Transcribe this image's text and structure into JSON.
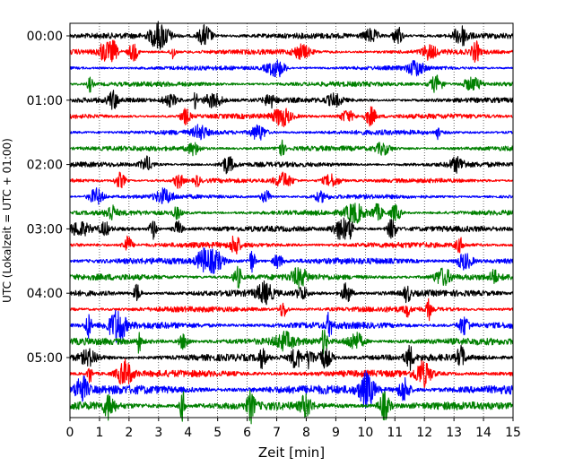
{
  "chart_data": {
    "type": "line",
    "title": "",
    "xlabel": "Zeit  [min]",
    "ylabel": "UTC (Lokalzeit = UTC + 01:00)",
    "xlim": [
      0,
      15
    ],
    "x_ticks": [
      "0",
      "1",
      "2",
      "3",
      "4",
      "5",
      "6",
      "7",
      "8",
      "9",
      "10",
      "11",
      "12",
      "13",
      "14",
      "15"
    ],
    "y_ticks": [
      "00:00",
      "01:00",
      "02:00",
      "03:00",
      "04:00",
      "05:00"
    ],
    "y_tick_rows": [
      0,
      4,
      8,
      12,
      16,
      20
    ],
    "grid": "vertical dotted lines at each minute",
    "row_interval_minutes": 15,
    "row_count": 24,
    "color_cycle": [
      "#000000",
      "#ff0000",
      "#0000ff",
      "#008000"
    ],
    "series": [
      {
        "start": "00:00",
        "color": "#000000",
        "amplitude": 0.45
      },
      {
        "start": "00:15",
        "color": "#ff0000",
        "amplitude": 0.4
      },
      {
        "start": "00:30",
        "color": "#0000ff",
        "amplitude": 0.35
      },
      {
        "start": "00:45",
        "color": "#008000",
        "amplitude": 0.4
      },
      {
        "start": "01:00",
        "color": "#000000",
        "amplitude": 0.4
      },
      {
        "start": "01:15",
        "color": "#ff0000",
        "amplitude": 0.4
      },
      {
        "start": "01:30",
        "color": "#0000ff",
        "amplitude": 0.4
      },
      {
        "start": "01:45",
        "color": "#008000",
        "amplitude": 0.4
      },
      {
        "start": "02:00",
        "color": "#000000",
        "amplitude": 0.4
      },
      {
        "start": "02:15",
        "color": "#ff0000",
        "amplitude": 0.35
      },
      {
        "start": "02:30",
        "color": "#0000ff",
        "amplitude": 0.35
      },
      {
        "start": "02:45",
        "color": "#008000",
        "amplitude": 0.4
      },
      {
        "start": "03:00",
        "color": "#000000",
        "amplitude": 0.45
      },
      {
        "start": "03:15",
        "color": "#ff0000",
        "amplitude": 0.45
      },
      {
        "start": "03:30",
        "color": "#0000ff",
        "amplitude": 0.5
      },
      {
        "start": "03:45",
        "color": "#008000",
        "amplitude": 0.5
      },
      {
        "start": "04:00",
        "color": "#000000",
        "amplitude": 0.5
      },
      {
        "start": "04:15",
        "color": "#ff0000",
        "amplitude": 0.45
      },
      {
        "start": "04:30",
        "color": "#0000ff",
        "amplitude": 0.55
      },
      {
        "start": "04:45",
        "color": "#008000",
        "amplitude": 0.55
      },
      {
        "start": "05:00",
        "color": "#000000",
        "amplitude": 0.55
      },
      {
        "start": "05:15",
        "color": "#ff0000",
        "amplitude": 0.55
      },
      {
        "start": "05:30",
        "color": "#0000ff",
        "amplitude": 0.7
      },
      {
        "start": "05:45",
        "color": "#008000",
        "amplitude": 0.65
      }
    ]
  }
}
